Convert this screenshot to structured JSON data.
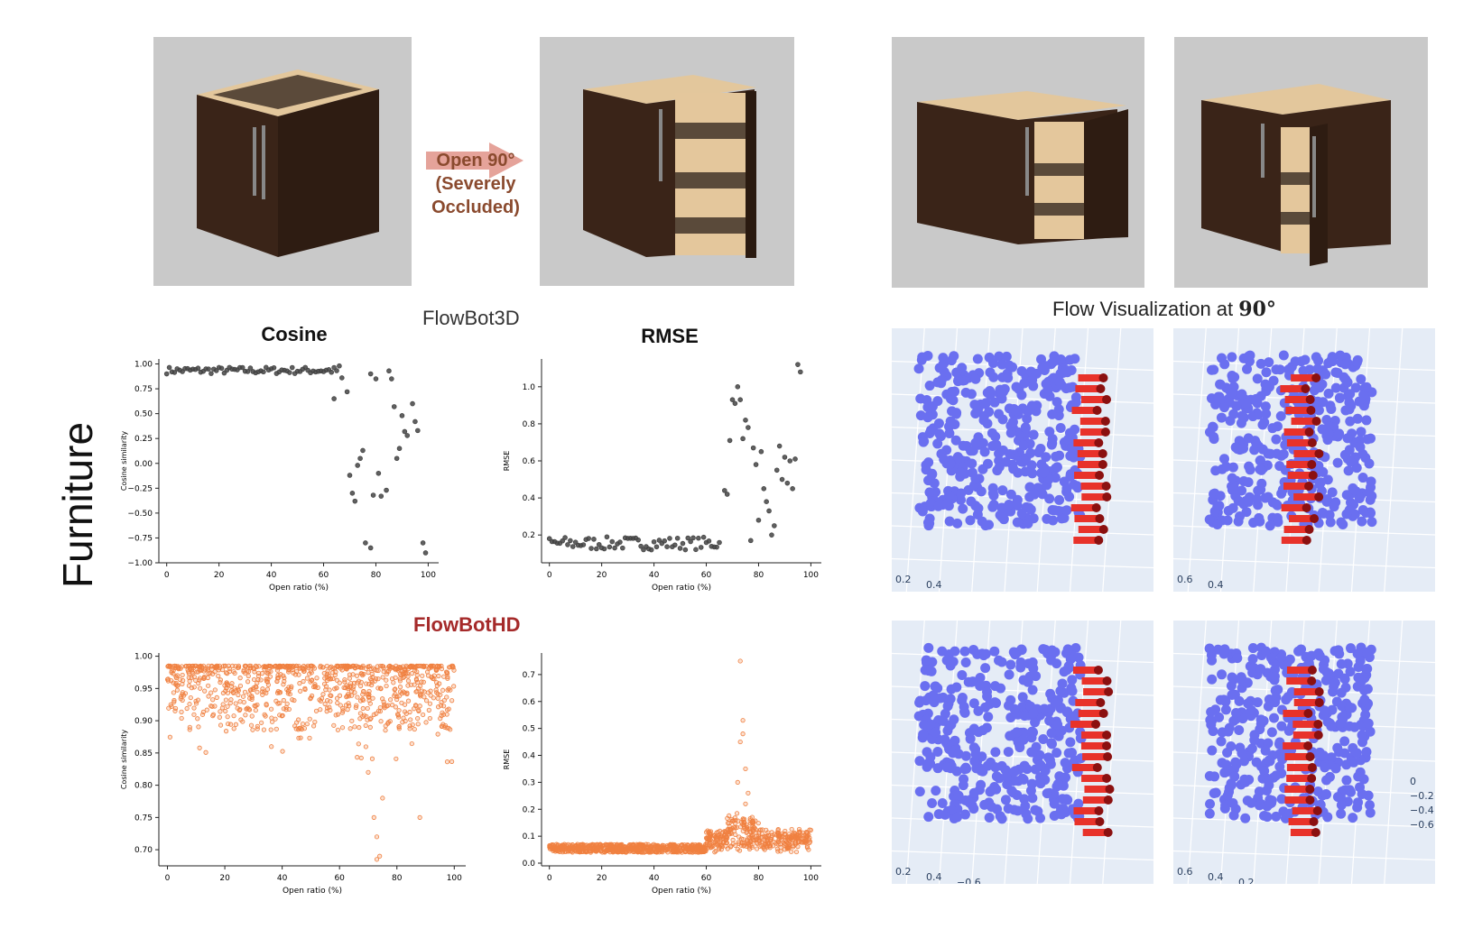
{
  "side_label": "Furniture",
  "arrow_label": {
    "line1": "Open 90°",
    "line2": "(Severely",
    "line3": "Occluded)"
  },
  "headers": {
    "flowbot3d": "FlowBot3D",
    "flowbothd": "FlowBotHD",
    "flow_vis": "Flow Visualization at",
    "flow_vis_angle": "90°"
  },
  "plot_titles": {
    "cosine": "Cosine",
    "rmse": "RMSE"
  },
  "colors": {
    "flowbot3d_points": "#555555",
    "flowbothd_points": "#f08040",
    "flowbothd_label": "#a52a2a",
    "point_cloud": "#6a6ff0",
    "flow_arrows": "#e8322a",
    "moving_points": "#8b1010"
  },
  "panels": [
    {
      "name": "cabinet-closed"
    },
    {
      "name": "cabinet-open-90"
    },
    {
      "name": "cabinet-open-side"
    },
    {
      "name": "cabinet-open-front"
    }
  ],
  "flow_axes": {
    "top_left": [
      "0.2",
      "0.4"
    ],
    "top_right_bottom": [
      "0.6",
      "0.4"
    ],
    "bottom_left": [
      "0.2",
      "0.4",
      "−0.6"
    ],
    "bottom_right_bottom": [
      "0.6",
      "0.4",
      "0.2",
      "0"
    ],
    "bottom_right_side": [
      "0",
      "−0.2",
      "−0.4",
      "−0.6"
    ]
  },
  "chart_data": [
    {
      "type": "scatter",
      "name": "FlowBot3D Cosine",
      "xlabel": "Open ratio (%)",
      "ylabel": "Cosine similarity",
      "xlim": [
        -3,
        104
      ],
      "ylim": [
        -1.0,
        1.05
      ],
      "xticks": [
        "0",
        "20",
        "40",
        "60",
        "80",
        "100"
      ],
      "yticks": [
        "1.00",
        "0.75",
        "0.50",
        "0.25",
        "0.00",
        "−0.25",
        "−0.50",
        "−0.75",
        "−1.00"
      ],
      "ytick_values": [
        1.0,
        0.75,
        0.5,
        0.25,
        0.0,
        -0.25,
        -0.5,
        -0.75,
        -1.0
      ],
      "pattern": "flat high until ~65%, scattered after"
    },
    {
      "type": "scatter",
      "name": "FlowBot3D RMSE",
      "xlabel": "Open ratio (%)",
      "ylabel": "RMSE",
      "xlim": [
        -3,
        104
      ],
      "ylim": [
        0.05,
        1.15
      ],
      "xticks": [
        "0",
        "20",
        "40",
        "60",
        "80",
        "100"
      ],
      "yticks": [
        "1.0",
        "0.8",
        "0.6",
        "0.4",
        "0.2"
      ],
      "ytick_values": [
        1.0,
        0.8,
        0.6,
        0.4,
        0.2
      ],
      "pattern": "flat ~0.15 until ~65%, scattered after"
    },
    {
      "type": "scatter",
      "name": "FlowBotHD Cosine",
      "xlabel": "Open ratio (%)",
      "ylabel": "Cosine similarity",
      "xlim": [
        -3,
        104
      ],
      "ylim": [
        0.675,
        1.005
      ],
      "xticks": [
        "0",
        "20",
        "40",
        "60",
        "80",
        "100"
      ],
      "yticks": [
        "1.00",
        "0.95",
        "0.90",
        "0.85",
        "0.80",
        "0.75",
        "0.70"
      ],
      "ytick_values": [
        1.0,
        0.95,
        0.9,
        0.85,
        0.8,
        0.75,
        0.7
      ],
      "pattern": "dense cloud 0.9-1.0 with sparse tail"
    },
    {
      "type": "scatter",
      "name": "FlowBotHD RMSE",
      "xlabel": "Open ratio (%)",
      "ylabel": "RMSE",
      "xlim": [
        -3,
        104
      ],
      "ylim": [
        -0.01,
        0.78
      ],
      "xticks": [
        "0",
        "20",
        "40",
        "60",
        "80",
        "100"
      ],
      "yticks": [
        "0.7",
        "0.6",
        "0.5",
        "0.4",
        "0.3",
        "0.2",
        "0.1",
        "0.0"
      ],
      "ytick_values": [
        0.7,
        0.6,
        0.5,
        0.4,
        0.3,
        0.2,
        0.1,
        0.0
      ],
      "pattern": "dense band ~0.05 with peak near 73%"
    }
  ]
}
